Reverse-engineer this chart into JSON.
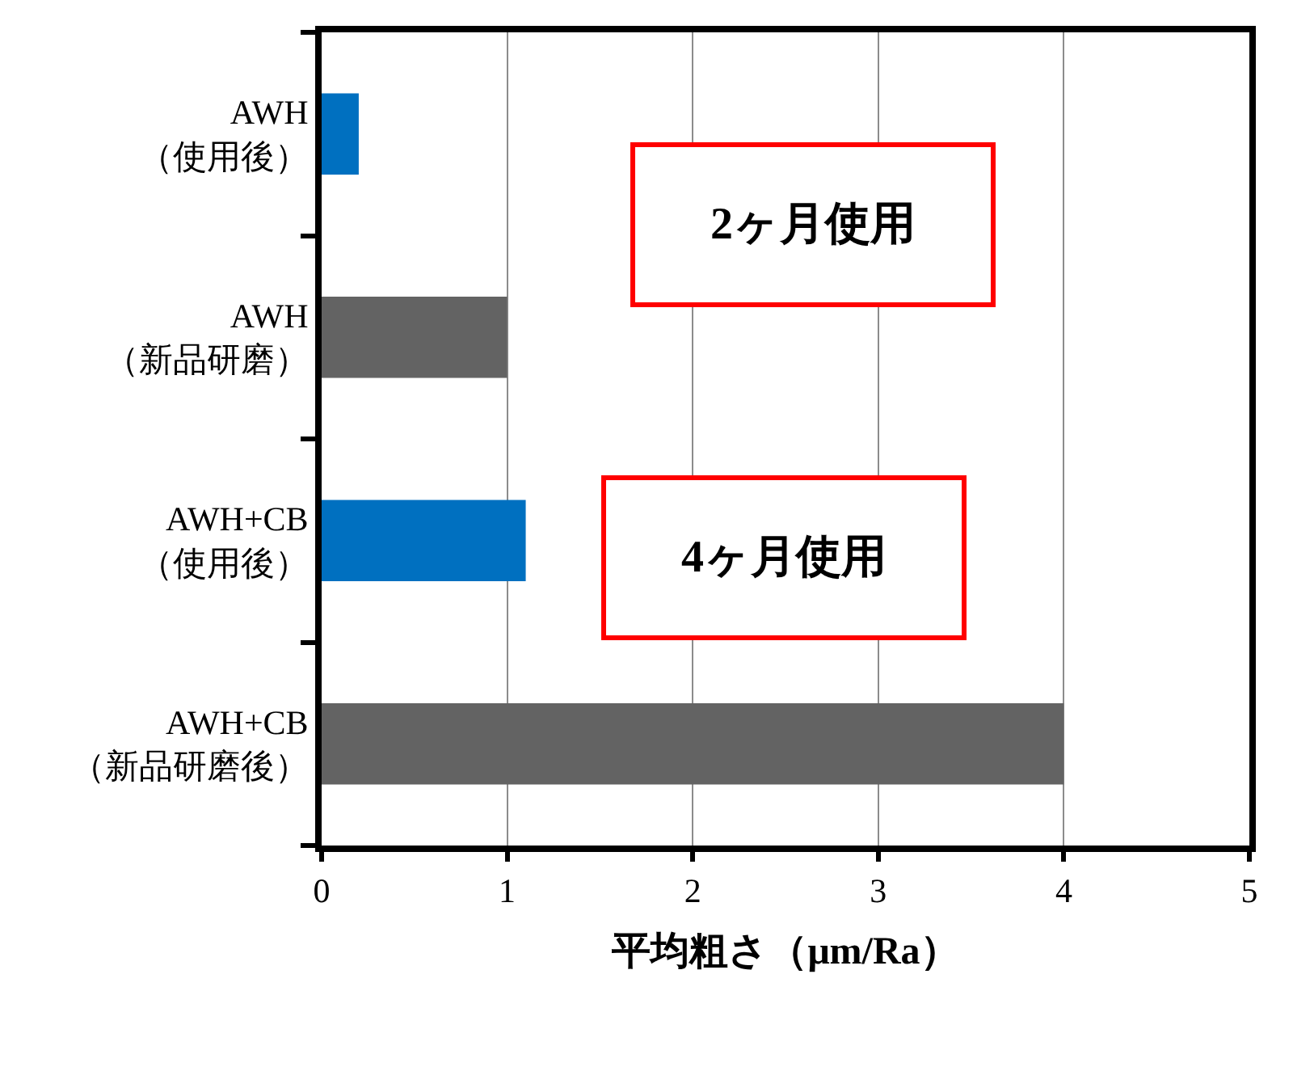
{
  "chart_data": {
    "type": "bar",
    "orientation": "horizontal",
    "categories": [
      "AWH\n（使用後）",
      "AWH\n（新品研磨）",
      "AWH+CB\n（使用後）",
      "AWH+CB\n（新品研磨後）"
    ],
    "values": [
      0.2,
      1,
      1.1,
      4
    ],
    "colors": [
      "#0070c0",
      "#636363",
      "#0070c0",
      "#636363"
    ],
    "xlim": [
      0,
      5
    ],
    "xticks": [
      0,
      1,
      2,
      3,
      4,
      5
    ],
    "xlabel": "平均粗さ（μm/Ra）",
    "grid": "x",
    "annotations": [
      "2ヶ月使用",
      "4ヶ月使用"
    ]
  }
}
